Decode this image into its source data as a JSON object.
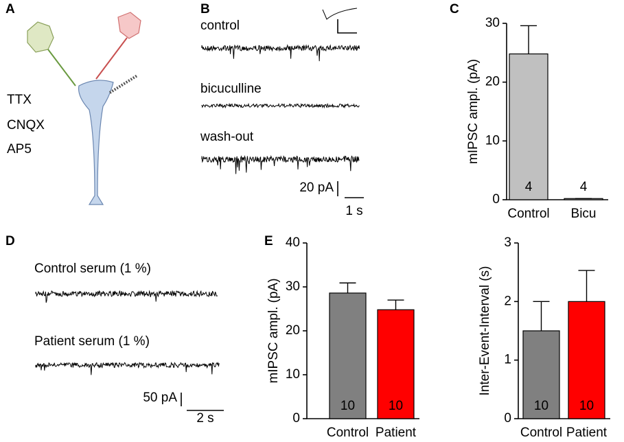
{
  "panel_labels": [
    "A",
    "B",
    "C",
    "D",
    "E"
  ],
  "drugs": [
    "TTX",
    "CNQX",
    "AP5"
  ],
  "traces_b": [
    "control",
    "bicuculline",
    "wash-out"
  ],
  "scale_b": {
    "y": "20 pA",
    "x": "1 s"
  },
  "traces_d": [
    "Control serum (1 %)",
    "Patient serum (1 %)"
  ],
  "scale_d": {
    "y": "50 pA",
    "x": "2 s"
  },
  "chart_data": [
    {
      "type": "bar",
      "ylabel": "mIPSC ampl. (pA)",
      "categories": [
        "Control",
        "Bicu"
      ],
      "values": [
        24.8,
        0.2
      ],
      "errors": [
        4.8,
        0
      ],
      "colors": [
        "#c0c0c0",
        "#c0c0c0"
      ],
      "n_labels": [
        "4",
        "4"
      ],
      "ylim": [
        0,
        30
      ],
      "yticks": [
        0,
        10,
        20,
        30
      ]
    },
    {
      "type": "bar",
      "ylabel": "mIPSC ampl. (pA)",
      "categories": [
        "Control",
        "Patient"
      ],
      "values": [
        28.6,
        24.8
      ],
      "errors": [
        2.3,
        2.2
      ],
      "colors": [
        "#808080",
        "#ff0000"
      ],
      "n_labels": [
        "10",
        "10"
      ],
      "ylim": [
        0,
        40
      ],
      "yticks": [
        0,
        10,
        20,
        30,
        40
      ]
    },
    {
      "type": "bar",
      "ylabel": "Inter-Event-Interval (s)",
      "categories": [
        "Control",
        "Patient"
      ],
      "values": [
        1.5,
        2.0
      ],
      "errors": [
        0.5,
        0.53
      ],
      "colors": [
        "#808080",
        "#ff0000"
      ],
      "n_labels": [
        "10",
        "10"
      ],
      "ylim": [
        0,
        3
      ],
      "yticks": [
        0,
        1,
        2,
        3
      ]
    }
  ]
}
